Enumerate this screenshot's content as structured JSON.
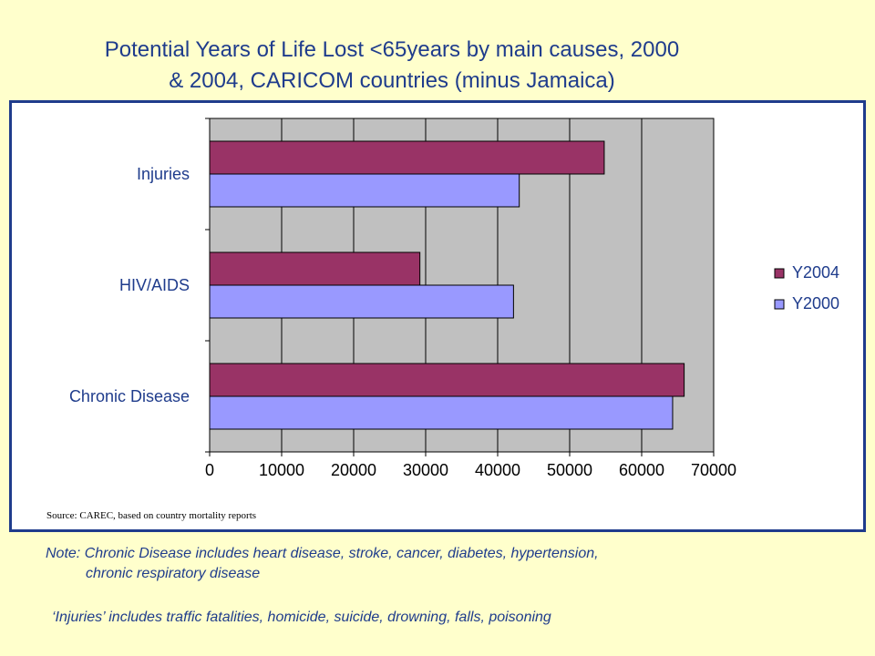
{
  "title": {
    "line1": "Potential Years of Life Lost <65years by main causes, 2000",
    "line2": "& 2004, CARICOM countries (minus Jamaica)"
  },
  "source": "Source: CAREC, based on country mortality reports",
  "notes": {
    "chronic_line1": "Note: Chronic Disease includes heart disease, stroke, cancer, diabetes, hypertension,",
    "chronic_line2": "chronic respiratory disease",
    "injuries": "‘Injuries’ includes traffic fatalities, homicide, suicide, drowning, falls, poisoning"
  },
  "colors": {
    "page_background": "#FFFFCC",
    "accent_text": "#1F3C8C",
    "plot_background": "#C0C0C0",
    "Y2004": "#993366",
    "Y2000": "#9999FF"
  },
  "chart_data": {
    "type": "bar",
    "orientation": "horizontal",
    "categories": [
      "Injuries",
      "HIV/AIDS",
      "Chronic Disease"
    ],
    "series": [
      {
        "name": "Y2004",
        "values": [
          54800,
          29200,
          65900
        ]
      },
      {
        "name": "Y2000",
        "values": [
          43000,
          42200,
          64300
        ]
      }
    ],
    "xlim": [
      0,
      70000
    ],
    "xticks": [
      "0",
      "10000",
      "20000",
      "30000",
      "40000",
      "50000",
      "60000",
      "70000"
    ],
    "xlabel": "",
    "ylabel": "",
    "grid": true,
    "legend": "right"
  }
}
